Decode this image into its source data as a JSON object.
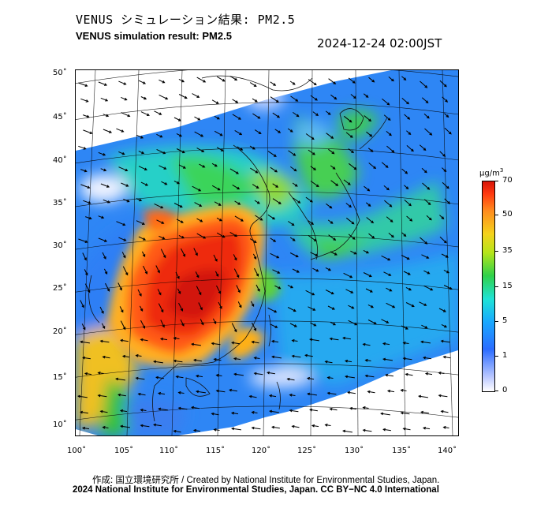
{
  "header": {
    "title_jp": "VENUS シミュレーション結果: PM2.5",
    "title_en": "VENUS simulation result: PM2.5",
    "timestamp": "2024-12-24 02:00JST"
  },
  "map": {
    "lat_labels": [
      "50˚",
      "45˚",
      "40˚",
      "35˚",
      "30˚",
      "25˚",
      "20˚",
      "15˚",
      "10˚"
    ],
    "lon_labels": [
      "100˚",
      "105˚",
      "110˚",
      "115˚",
      "120˚",
      "125˚",
      "130˚",
      "135˚",
      "140˚"
    ],
    "frame_color": "#000000",
    "coast_color": "#111111",
    "wind_arrow_color": "#000000"
  },
  "colorbar": {
    "unit_text": "μg/m",
    "unit_sup": "3",
    "ticks": [
      "70",
      "50",
      "35",
      "15",
      "5",
      "1",
      "0"
    ],
    "colors": {
      "zero": "#ffffff",
      "low": "#2b6cff",
      "mid": "#2fd14a",
      "high": "#ff8c1e",
      "max": "#d81408"
    }
  },
  "footer": {
    "credit_jp": "作成: 国立環境研究所 / Created by National Institute for Environmental Studies, Japan.",
    "copyright": "2024 National Institute for Environmental Studies, Japan. CC BY−NC 4.0 International"
  }
}
